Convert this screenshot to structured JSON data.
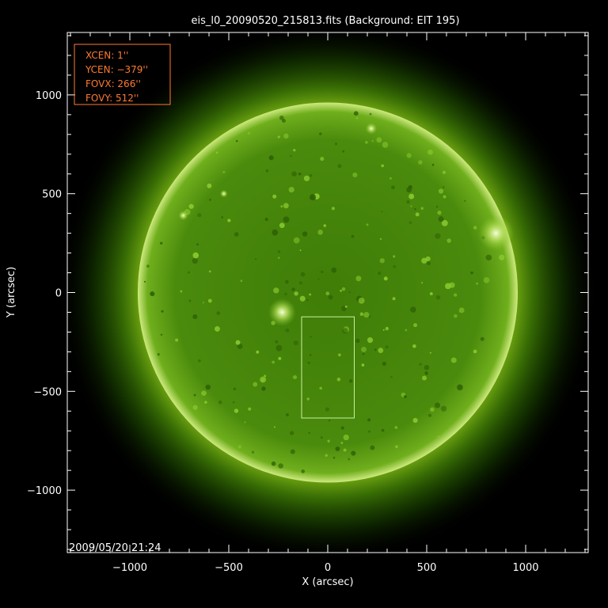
{
  "chart_data": {
    "type": "image",
    "title": "eis_l0_20090520_215813.fits  (Background: EIT 195)",
    "xlabel": "X (arcsec)",
    "ylabel": "Y (arcsec)",
    "xlim": [
      -1316,
      1316
    ],
    "ylim": [
      -1316,
      1316
    ],
    "x_ticks": [
      -1000,
      -500,
      0,
      500,
      1000
    ],
    "y_ticks": [
      -1000,
      -500,
      0,
      500,
      1000
    ],
    "x_tick_labels": [
      "−1000",
      "−500",
      "0",
      "500",
      "1000"
    ],
    "y_tick_labels": [
      "−1000",
      "−500",
      "0",
      "500",
      "1000"
    ],
    "solar_radius_arcsec": 960,
    "background_colormap": "EIT 195 green",
    "timestamp": "2009/05/20 21:24",
    "fov_box": {
      "xcen": 1,
      "ycen": -379,
      "fovx": 266,
      "fovy": 512,
      "color": "#c8f0a0"
    },
    "info_box": {
      "lines": [
        "XCEN:  1''",
        "YCEN:  −379''",
        "FOVX:  266''",
        "FOVY:  512''"
      ],
      "color": "#ff7a30"
    },
    "bright_regions": [
      {
        "x": -230,
        "y": -100,
        "r": 70
      },
      {
        "x": 850,
        "y": 300,
        "r": 90
      },
      {
        "x": 220,
        "y": 830,
        "r": 30
      },
      {
        "x": -730,
        "y": 390,
        "r": 25
      },
      {
        "x": -525,
        "y": 500,
        "r": 20
      }
    ]
  }
}
